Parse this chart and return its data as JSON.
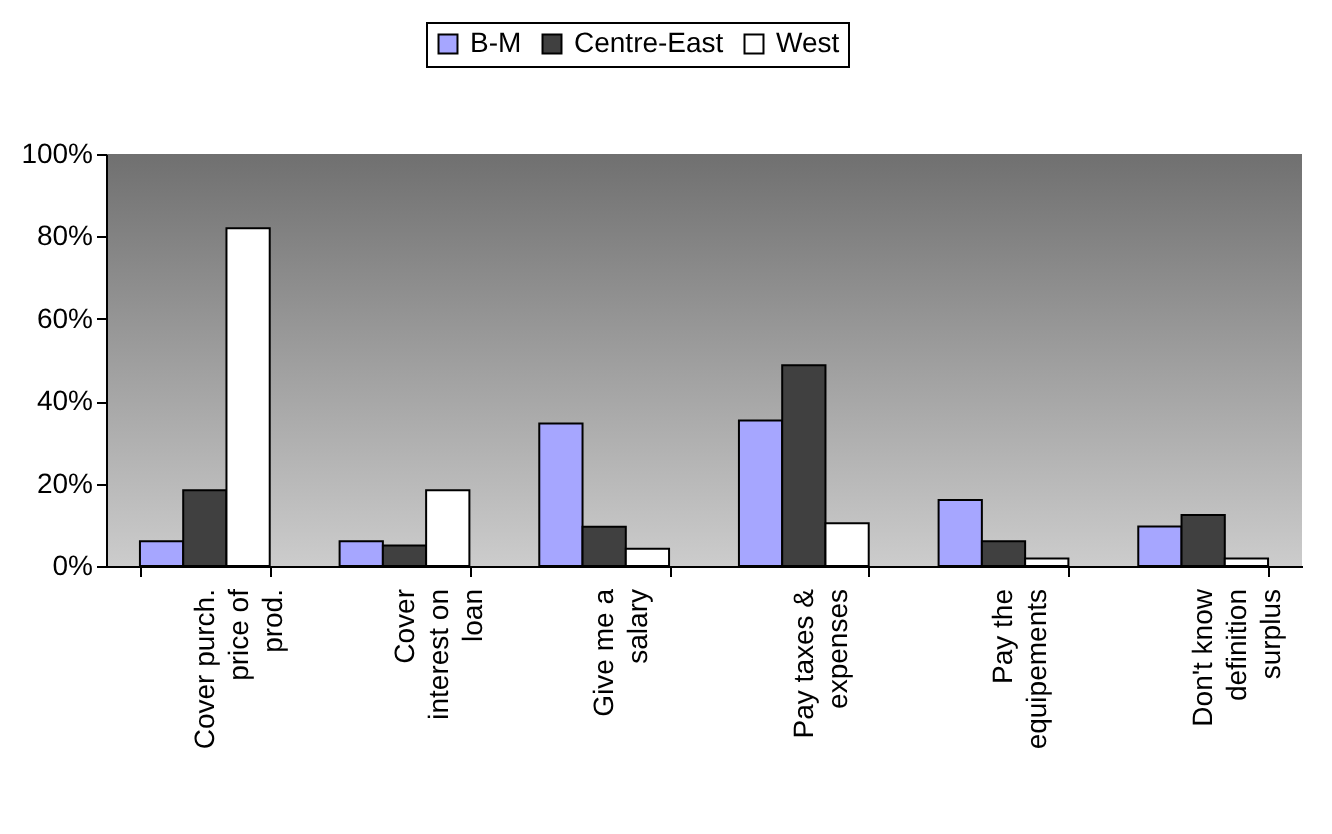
{
  "chart_data": {
    "type": "bar",
    "categories": [
      "Cover purch.\nprice of\nprod.",
      "Cover\ninterest on\nloan",
      "Give me a\nsalary",
      "Pay taxes &\nexpenses",
      "Pay the\nequipements",
      "Don't know\ndefinition\nsurplus"
    ],
    "series": [
      {
        "name": "B-M",
        "color": "#a6a6ff",
        "values": [
          6,
          6,
          34.6,
          35.3,
          16,
          9.6
        ]
      },
      {
        "name": "Centre-East",
        "color": "#404040",
        "values": [
          18.4,
          5,
          9.5,
          48.7,
          6,
          12.4
        ]
      },
      {
        "name": "West",
        "color": "#ffffff",
        "values": [
          82,
          18.4,
          4.2,
          10.4,
          1.8,
          1.8
        ]
      }
    ],
    "ylim": [
      0,
      100
    ],
    "yticks": [
      {
        "value": 0,
        "label": "0%"
      },
      {
        "value": 20,
        "label": "20%"
      },
      {
        "value": 40,
        "label": "40%"
      },
      {
        "value": 60,
        "label": "60%"
      },
      {
        "value": 80,
        "label": "80%"
      },
      {
        "value": 100,
        "label": "100%"
      }
    ],
    "grid": false,
    "legend": "top"
  }
}
